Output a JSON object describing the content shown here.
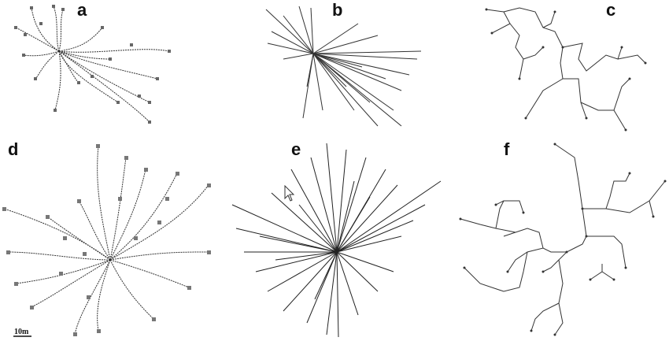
{
  "figure": {
    "panels": [
      {
        "id": "a",
        "label": "a",
        "kind": "dendritic-network-with-nodes"
      },
      {
        "id": "b",
        "label": "b",
        "kind": "star-burst"
      },
      {
        "id": "c",
        "label": "c",
        "kind": "tree-network"
      },
      {
        "id": "d",
        "label": "d",
        "kind": "dendritic-network-with-nodes"
      },
      {
        "id": "e",
        "label": "e",
        "kind": "star-burst"
      },
      {
        "id": "f",
        "label": "f",
        "kind": "tree-network"
      }
    ],
    "scale_bar": {
      "label": "10m"
    },
    "colors": {
      "line": "#333333",
      "node": "#666666",
      "background": "#ffffff"
    }
  }
}
